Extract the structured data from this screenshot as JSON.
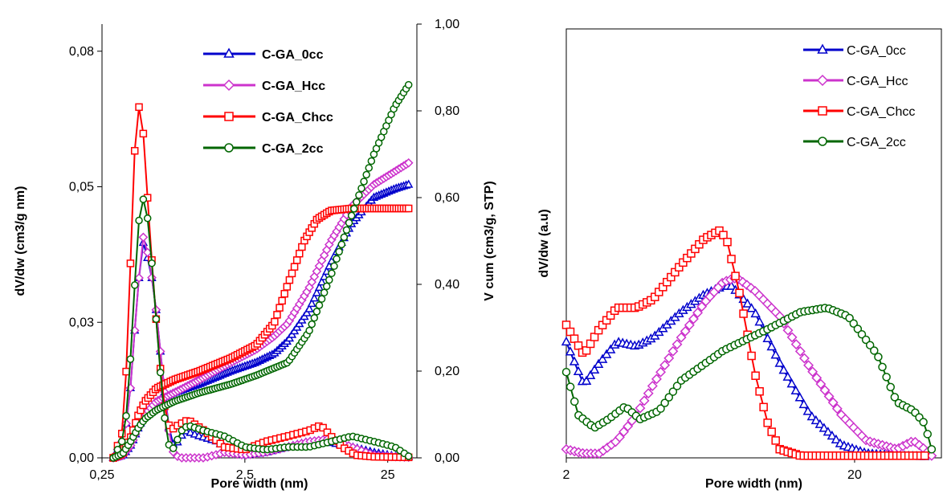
{
  "chart_data": [
    {
      "type": "line",
      "title": "",
      "xlabel": "Pore width (nm)",
      "ylabel": "dV/dw (cm3/g nm)",
      "y2label": "V cum (cm3/g, STP)",
      "x_scale": "log",
      "xlim": [
        0.25,
        40
      ],
      "ylim": [
        0,
        0.08
      ],
      "y2lim": [
        0,
        1.0
      ],
      "x_ticks": [
        "0,25",
        "2,5",
        "25"
      ],
      "y_ticks": [
        "0,00",
        "0,03",
        "0,05",
        "0,08"
      ],
      "y2_ticks": [
        "0,00",
        "0,20",
        "0,40",
        "0,60",
        "0,80",
        "1,00"
      ],
      "legend_position": "top-right",
      "series": [
        {
          "name": "C-GA_0cc",
          "color": "#0000CC",
          "marker": "triangle",
          "dv_dw": [
            [
              0.3,
              0
            ],
            [
              0.36,
              0.004
            ],
            [
              0.4,
              0.014
            ],
            [
              0.43,
              0.026
            ],
            [
              0.46,
              0.035
            ],
            [
              0.48,
              0.04
            ],
            [
              0.5,
              0.039
            ],
            [
              0.53,
              0.036
            ],
            [
              0.56,
              0.033
            ],
            [
              0.6,
              0.027
            ],
            [
              0.65,
              0.018
            ],
            [
              0.7,
              0.01
            ],
            [
              0.75,
              0.004
            ],
            [
              0.8,
              0.002
            ],
            [
              0.85,
              0.003
            ],
            [
              0.95,
              0.005
            ],
            [
              1.2,
              0.004
            ],
            [
              1.6,
              0.003
            ],
            [
              2.0,
              0.001
            ],
            [
              2.5,
              0.0005
            ],
            [
              3.5,
              0.001
            ],
            [
              5,
              0.002
            ],
            [
              7,
              0.003
            ],
            [
              10,
              0.0028
            ],
            [
              14,
              0.002
            ],
            [
              20,
              0.001
            ],
            [
              28,
              0.0003
            ],
            [
              35,
              0.0002
            ]
          ],
          "v_cum": [
            [
              0.3,
              0
            ],
            [
              0.35,
              0.005
            ],
            [
              0.4,
              0.03
            ],
            [
              0.45,
              0.07
            ],
            [
              0.5,
              0.1
            ],
            [
              0.6,
              0.13
            ],
            [
              0.8,
              0.15
            ],
            [
              1.2,
              0.17
            ],
            [
              2.0,
              0.2
            ],
            [
              3.0,
              0.22
            ],
            [
              4.0,
              0.24
            ],
            [
              5.0,
              0.27
            ],
            [
              7,
              0.34
            ],
            [
              10,
              0.45
            ],
            [
              14,
              0.54
            ],
            [
              20,
              0.6
            ],
            [
              28,
              0.62
            ],
            [
              35,
              0.63
            ]
          ]
        },
        {
          "name": "C-GA_Hcc",
          "color": "#CC33CC",
          "marker": "diamond",
          "dv_dw": [
            [
              0.3,
              0
            ],
            [
              0.36,
              0.004
            ],
            [
              0.4,
              0.014
            ],
            [
              0.43,
              0.026
            ],
            [
              0.46,
              0.035
            ],
            [
              0.48,
              0.041
            ],
            [
              0.5,
              0.04
            ],
            [
              0.53,
              0.037
            ],
            [
              0.56,
              0.033
            ],
            [
              0.6,
              0.027
            ],
            [
              0.65,
              0.018
            ],
            [
              0.7,
              0.01
            ],
            [
              0.75,
              0.003
            ],
            [
              0.8,
              0.0005
            ],
            [
              0.9,
              0
            ],
            [
              1.3,
              0
            ],
            [
              1.8,
              0.001
            ],
            [
              2.5,
              0.0005
            ],
            [
              3.5,
              0.001
            ],
            [
              5,
              0.002
            ],
            [
              7,
              0.003
            ],
            [
              10,
              0.0035
            ],
            [
              14,
              0.002
            ],
            [
              20,
              0.0005
            ],
            [
              28,
              0.0002
            ],
            [
              35,
              0.0001
            ]
          ],
          "v_cum": [
            [
              0.3,
              0
            ],
            [
              0.35,
              0.005
            ],
            [
              0.4,
              0.03
            ],
            [
              0.45,
              0.07
            ],
            [
              0.5,
              0.1
            ],
            [
              0.6,
              0.13
            ],
            [
              0.8,
              0.15
            ],
            [
              1.2,
              0.18
            ],
            [
              2.0,
              0.22
            ],
            [
              3.0,
              0.25
            ],
            [
              4.0,
              0.28
            ],
            [
              5.0,
              0.31
            ],
            [
              7,
              0.39
            ],
            [
              10,
              0.5
            ],
            [
              14,
              0.58
            ],
            [
              20,
              0.63
            ],
            [
              28,
              0.66
            ],
            [
              35,
              0.68
            ]
          ]
        },
        {
          "name": "C-GA_Chcc",
          "color": "#FF0000",
          "marker": "square",
          "dv_dw": [
            [
              0.3,
              0
            ],
            [
              0.35,
              0.005
            ],
            [
              0.38,
              0.022
            ],
            [
              0.4,
              0.04
            ],
            [
              0.42,
              0.055
            ],
            [
              0.44,
              0.064
            ],
            [
              0.46,
              0.065
            ],
            [
              0.48,
              0.062
            ],
            [
              0.5,
              0.055
            ],
            [
              0.53,
              0.045
            ],
            [
              0.57,
              0.033
            ],
            [
              0.62,
              0.02
            ],
            [
              0.68,
              0.01
            ],
            [
              0.75,
              0.005
            ],
            [
              0.85,
              0.006
            ],
            [
              1.0,
              0.007
            ],
            [
              1.3,
              0.005
            ],
            [
              1.8,
              0.002
            ],
            [
              2.5,
              0.0015
            ],
            [
              3.5,
              0.003
            ],
            [
              5,
              0.004
            ],
            [
              7,
              0.005
            ],
            [
              8.5,
              0.006
            ],
            [
              10,
              0.004
            ],
            [
              12,
              0.002
            ],
            [
              15,
              0.0005
            ],
            [
              20,
              0.0002
            ],
            [
              35,
              0.0001
            ]
          ],
          "v_cum": [
            [
              0.3,
              0
            ],
            [
              0.35,
              0.01
            ],
            [
              0.4,
              0.05
            ],
            [
              0.45,
              0.1
            ],
            [
              0.5,
              0.13
            ],
            [
              0.6,
              0.16
            ],
            [
              0.8,
              0.18
            ],
            [
              1.2,
              0.2
            ],
            [
              2.0,
              0.23
            ],
            [
              3.0,
              0.26
            ],
            [
              4.0,
              0.31
            ],
            [
              5.0,
              0.4
            ],
            [
              6.5,
              0.5
            ],
            [
              8,
              0.55
            ],
            [
              10,
              0.57
            ],
            [
              14,
              0.575
            ],
            [
              35,
              0.575
            ]
          ]
        },
        {
          "name": "C-GA_2cc",
          "color": "#006600",
          "marker": "circle",
          "dv_dw": [
            [
              0.3,
              0
            ],
            [
              0.36,
              0.004
            ],
            [
              0.4,
              0.02
            ],
            [
              0.43,
              0.035
            ],
            [
              0.46,
              0.046
            ],
            [
              0.48,
              0.048
            ],
            [
              0.5,
              0.047
            ],
            [
              0.53,
              0.043
            ],
            [
              0.57,
              0.033
            ],
            [
              0.62,
              0.02
            ],
            [
              0.68,
              0.008
            ],
            [
              0.75,
              0.001
            ],
            [
              0.8,
              0.002
            ],
            [
              0.9,
              0.005
            ],
            [
              1.0,
              0.006
            ],
            [
              1.3,
              0.005
            ],
            [
              1.8,
              0.004
            ],
            [
              2.5,
              0.002
            ],
            [
              3.5,
              0.0015
            ],
            [
              5,
              0.002
            ],
            [
              7,
              0.002
            ],
            [
              10,
              0.003
            ],
            [
              14,
              0.004
            ],
            [
              20,
              0.003
            ],
            [
              28,
              0.002
            ],
            [
              35,
              0.0003
            ]
          ],
          "v_cum": [
            [
              0.3,
              0
            ],
            [
              0.35,
              0.01
            ],
            [
              0.4,
              0.04
            ],
            [
              0.45,
              0.07
            ],
            [
              0.5,
              0.09
            ],
            [
              0.6,
              0.11
            ],
            [
              0.8,
              0.13
            ],
            [
              1.2,
              0.15
            ],
            [
              2.0,
              0.17
            ],
            [
              3.0,
              0.19
            ],
            [
              5,
              0.22
            ],
            [
              7,
              0.29
            ],
            [
              10,
              0.42
            ],
            [
              14,
              0.56
            ],
            [
              20,
              0.7
            ],
            [
              28,
              0.81
            ],
            [
              35,
              0.86
            ]
          ]
        }
      ]
    },
    {
      "type": "line",
      "title": "",
      "xlabel": "Pore width (nm)",
      "ylabel": "dV/dw (a.u)",
      "x_scale": "log",
      "xlim": [
        2,
        40
      ],
      "ylim": [
        0,
        1
      ],
      "x_ticks": [
        "2",
        "20"
      ],
      "legend_position": "top-right",
      "series": [
        {
          "name": "C-GA_0cc",
          "color": "#0000CC",
          "marker": "triangle",
          "points": [
            [
              2.0,
              0.27
            ],
            [
              2.3,
              0.17
            ],
            [
              2.6,
              0.22
            ],
            [
              3.0,
              0.27
            ],
            [
              3.5,
              0.26
            ],
            [
              4.0,
              0.28
            ],
            [
              5,
              0.34
            ],
            [
              6,
              0.38
            ],
            [
              7,
              0.4
            ],
            [
              7.5,
              0.4
            ],
            [
              9,
              0.34
            ],
            [
              11,
              0.22
            ],
            [
              14,
              0.1
            ],
            [
              18,
              0.03
            ],
            [
              22,
              0.01
            ],
            [
              28,
              0.005
            ],
            [
              35,
              0.003
            ]
          ]
        },
        {
          "name": "C-GA_Hcc",
          "color": "#CC33CC",
          "marker": "diamond",
          "points": [
            [
              2.0,
              0.02
            ],
            [
              2.3,
              0.01
            ],
            [
              2.6,
              0.01
            ],
            [
              3.0,
              0.04
            ],
            [
              3.5,
              0.1
            ],
            [
              4.0,
              0.17
            ],
            [
              5,
              0.28
            ],
            [
              6,
              0.36
            ],
            [
              7,
              0.41
            ],
            [
              7.8,
              0.42
            ],
            [
              9,
              0.39
            ],
            [
              11,
              0.33
            ],
            [
              14,
              0.21
            ],
            [
              18,
              0.1
            ],
            [
              22,
              0.04
            ],
            [
              28,
              0.02
            ],
            [
              32,
              0.04
            ],
            [
              35,
              0.02
            ],
            [
              37,
              0.005
            ]
          ]
        },
        {
          "name": "C-GA_Chcc",
          "color": "#FF0000",
          "marker": "square",
          "points": [
            [
              2.0,
              0.31
            ],
            [
              2.3,
              0.24
            ],
            [
              2.6,
              0.3
            ],
            [
              3.0,
              0.35
            ],
            [
              3.5,
              0.35
            ],
            [
              4.0,
              0.37
            ],
            [
              5,
              0.45
            ],
            [
              6,
              0.51
            ],
            [
              6.8,
              0.53
            ],
            [
              7.2,
              0.51
            ],
            [
              8,
              0.38
            ],
            [
              9,
              0.2
            ],
            [
              10,
              0.08
            ],
            [
              11,
              0.02
            ],
            [
              13,
              0.005
            ],
            [
              20,
              0.005
            ],
            [
              35,
              0.005
            ]
          ]
        },
        {
          "name": "C-GA_2cc",
          "color": "#006600",
          "marker": "circle",
          "points": [
            [
              2.0,
              0.2
            ],
            [
              2.2,
              0.1
            ],
            [
              2.5,
              0.07
            ],
            [
              2.8,
              0.09
            ],
            [
              3.2,
              0.12
            ],
            [
              3.6,
              0.09
            ],
            [
              4.2,
              0.11
            ],
            [
              5,
              0.18
            ],
            [
              7,
              0.25
            ],
            [
              10,
              0.3
            ],
            [
              13,
              0.34
            ],
            [
              16,
              0.35
            ],
            [
              19,
              0.33
            ],
            [
              24,
              0.24
            ],
            [
              28,
              0.13
            ],
            [
              32,
              0.11
            ],
            [
              35,
              0.08
            ],
            [
              37,
              0.02
            ]
          ]
        }
      ]
    }
  ]
}
